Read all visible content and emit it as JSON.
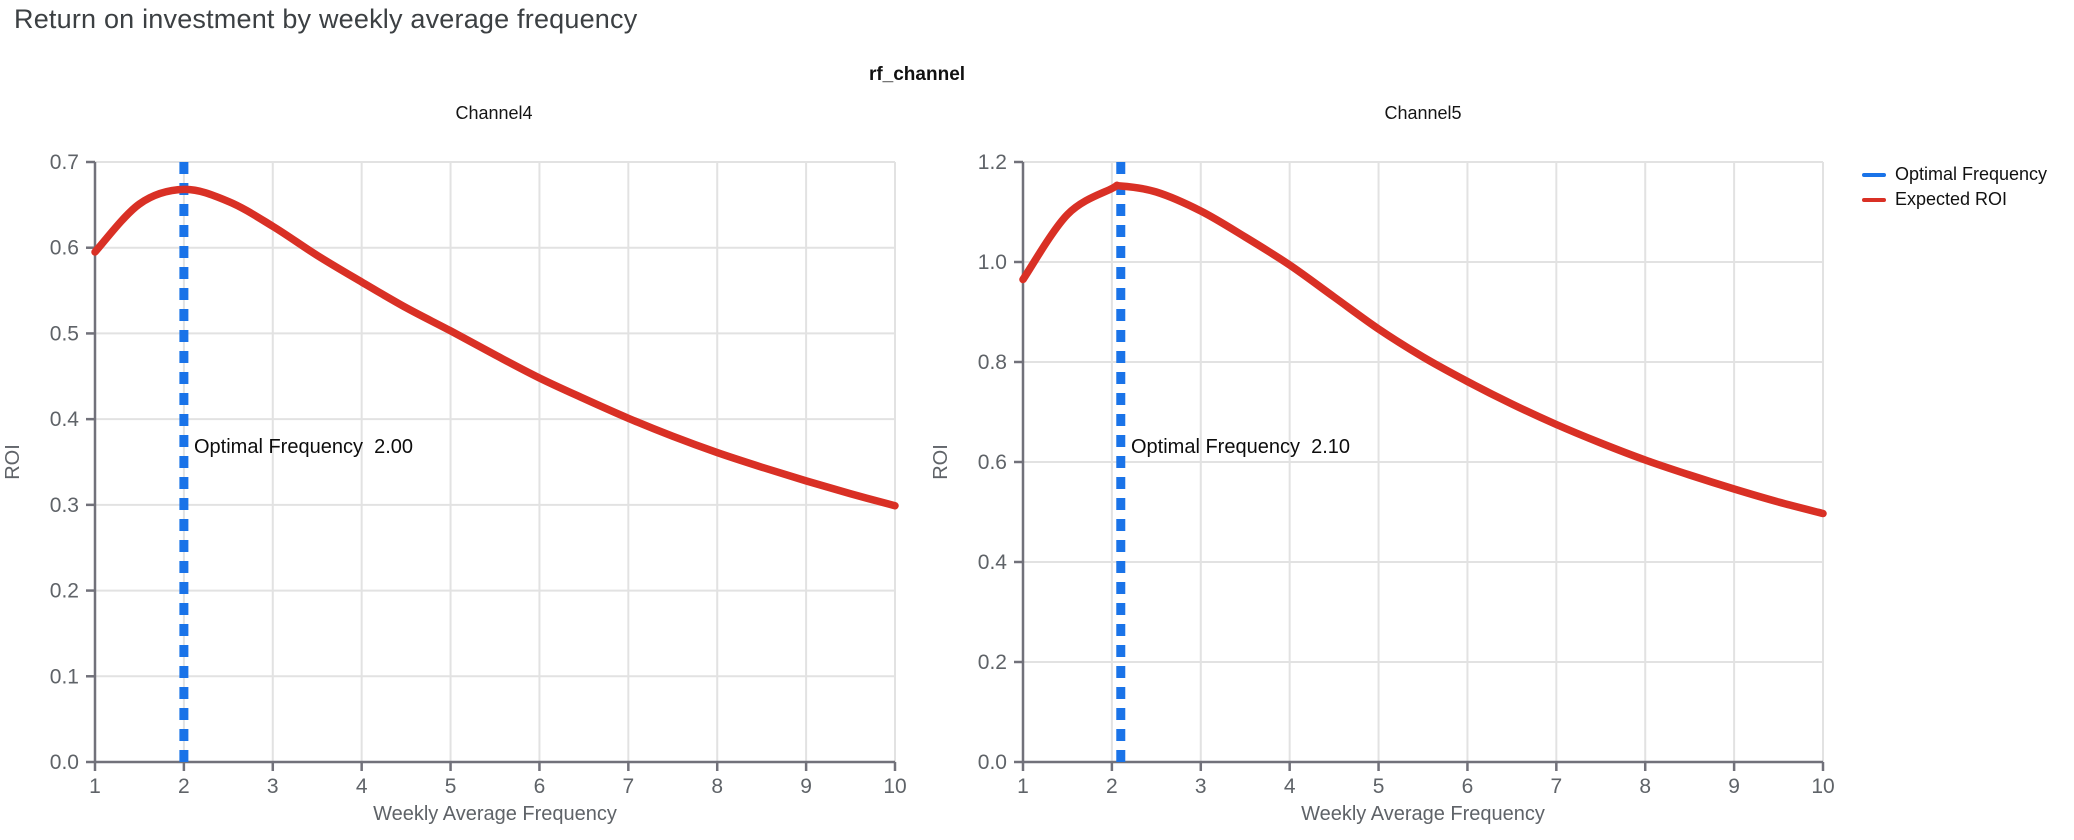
{
  "title": "Return on investment by weekly average frequency",
  "suptitle": "rf_channel",
  "legend": [
    {
      "label": "Optimal Frequency",
      "color": "#1a73e8"
    },
    {
      "label": "Expected ROI",
      "color": "#d93025"
    }
  ],
  "colors": {
    "optimal_frequency_line": "#1a73e8",
    "expected_roi_line": "#d93025",
    "gridline": "#e2e2e2",
    "axis": "#71717a",
    "tick_label": "#5f6368",
    "page_title": "#3c4043"
  },
  "chart_data": [
    {
      "type": "line",
      "title": "Channel4",
      "xlabel": "Weekly Average Frequency",
      "ylabel": "ROI",
      "xlim": [
        1,
        10
      ],
      "ylim": [
        0,
        0.7
      ],
      "xticks": [
        1,
        2,
        3,
        4,
        5,
        6,
        7,
        8,
        9,
        10
      ],
      "yticks": [
        0,
        0.1,
        0.2,
        0.3,
        0.4,
        0.5,
        0.6,
        0.7
      ],
      "grid": true,
      "optimal_frequency": 2.0,
      "annotation": "Optimal Frequency  2.00",
      "roi_curve": {
        "name": "Expected ROI",
        "x": [
          1,
          1.5,
          2,
          2.5,
          3,
          3.5,
          4,
          4.5,
          5,
          5.5,
          6,
          6.5,
          7,
          7.5,
          8,
          8.5,
          9,
          9.5,
          10
        ],
        "y": [
          0.595,
          0.651,
          0.668,
          0.654,
          0.625,
          0.591,
          0.56,
          0.53,
          0.503,
          0.475,
          0.448,
          0.424,
          0.401,
          0.38,
          0.361,
          0.344,
          0.328,
          0.313,
          0.299
        ]
      }
    },
    {
      "type": "line",
      "title": "Channel5",
      "xlabel": "Weekly Average Frequency",
      "ylabel": "ROI",
      "xlim": [
        1,
        10
      ],
      "ylim": [
        0,
        1.2
      ],
      "xticks": [
        1,
        2,
        3,
        4,
        5,
        6,
        7,
        8,
        9,
        10
      ],
      "yticks": [
        0,
        0.2,
        0.4,
        0.6,
        0.8,
        1.0,
        1.2
      ],
      "grid": true,
      "optimal_frequency": 2.1,
      "annotation": "Optimal Frequency  2.10",
      "roi_curve": {
        "name": "Expected ROI",
        "x": [
          1,
          1.5,
          2,
          2.1,
          2.5,
          3,
          3.5,
          4,
          4.5,
          5,
          5.5,
          6,
          6.5,
          7,
          7.5,
          8,
          8.5,
          9,
          9.5,
          10
        ],
        "y": [
          0.965,
          1.095,
          1.147,
          1.152,
          1.14,
          1.102,
          1.05,
          0.994,
          0.93,
          0.866,
          0.81,
          0.761,
          0.716,
          0.675,
          0.638,
          0.604,
          0.574,
          0.546,
          0.52,
          0.497
        ]
      }
    }
  ]
}
